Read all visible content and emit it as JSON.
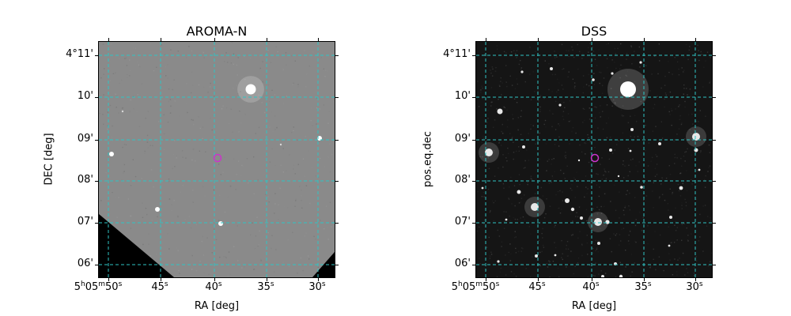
{
  "panels": [
    {
      "title": "AROMA-N",
      "xlabel": "RA [deg]",
      "ylabel": "DEC [deg]",
      "yticks": [
        "4°11'",
        "10'",
        "09'",
        "08'",
        "07'",
        "06'"
      ],
      "xticks": [
        {
          "h": "5",
          "m": "05",
          "s": "50",
          "label_kind": "full"
        },
        {
          "s": "45",
          "label_kind": "sec"
        },
        {
          "s": "40",
          "label_kind": "sec"
        },
        {
          "s": "35",
          "label_kind": "sec"
        },
        {
          "s": "30",
          "label_kind": "sec"
        }
      ],
      "background": "#8a8a8a",
      "image_kind": "aroma"
    },
    {
      "title": "DSS",
      "xlabel": "RA [deg]",
      "ylabel": "pos.eq.dec",
      "yticks": [
        "4°11'",
        "10'",
        "09'",
        "08'",
        "07'",
        "06'"
      ],
      "xticks": [
        {
          "h": "5",
          "m": "05",
          "s": "50",
          "label_kind": "full"
        },
        {
          "s": "45",
          "label_kind": "sec"
        },
        {
          "s": "40",
          "label_kind": "sec"
        },
        {
          "s": "35",
          "label_kind": "sec"
        },
        {
          "s": "30",
          "label_kind": "sec"
        }
      ],
      "background": "#151515",
      "image_kind": "dss"
    }
  ],
  "colors": {
    "grid": "#2ec4c4",
    "marker": "#cc33cc"
  }
}
